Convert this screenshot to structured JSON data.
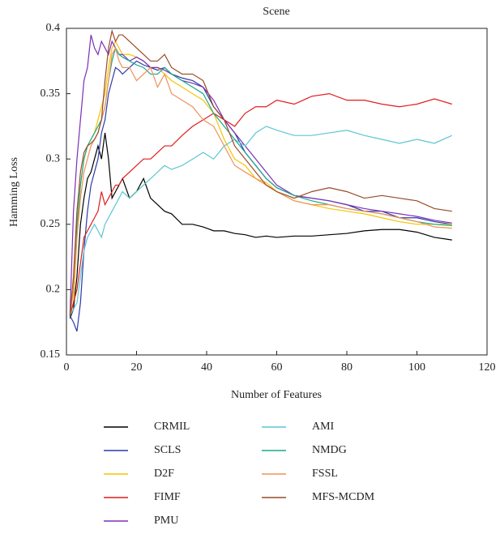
{
  "chart_data": {
    "type": "line",
    "title": "Scene",
    "xlabel": "Number of Features",
    "ylabel": "Hamming Loss",
    "x": [
      1,
      2,
      3,
      4,
      5,
      6,
      7,
      8,
      9,
      10,
      11,
      12,
      13,
      14,
      15,
      16,
      18,
      20,
      22,
      24,
      26,
      28,
      30,
      33,
      36,
      39,
      42,
      45,
      48,
      51,
      54,
      57,
      60,
      65,
      70,
      75,
      80,
      85,
      90,
      95,
      100,
      105,
      110
    ],
    "series": [
      {
        "name": "CRMIL",
        "color": "#000000",
        "values": [
          0.178,
          0.185,
          0.21,
          0.25,
          0.27,
          0.285,
          0.29,
          0.3,
          0.31,
          0.3,
          0.32,
          0.3,
          0.27,
          0.275,
          0.28,
          0.285,
          0.27,
          0.275,
          0.285,
          0.27,
          0.265,
          0.26,
          0.258,
          0.25,
          0.25,
          0.248,
          0.245,
          0.245,
          0.243,
          0.242,
          0.24,
          0.241,
          0.24,
          0.241,
          0.241,
          0.242,
          0.243,
          0.245,
          0.246,
          0.246,
          0.244,
          0.24,
          0.238
        ]
      },
      {
        "name": "SCLS",
        "color": "#2b3ba8",
        "values": [
          0.18,
          0.175,
          0.168,
          0.19,
          0.23,
          0.26,
          0.28,
          0.29,
          0.3,
          0.32,
          0.33,
          0.35,
          0.36,
          0.37,
          0.368,
          0.365,
          0.37,
          0.375,
          0.372,
          0.37,
          0.368,
          0.37,
          0.365,
          0.362,
          0.36,
          0.355,
          0.34,
          0.33,
          0.32,
          0.305,
          0.295,
          0.285,
          0.278,
          0.272,
          0.27,
          0.268,
          0.265,
          0.26,
          0.26,
          0.255,
          0.255,
          0.252,
          0.25
        ]
      },
      {
        "name": "D2F",
        "color": "#f5c400",
        "values": [
          0.18,
          0.19,
          0.24,
          0.28,
          0.3,
          0.31,
          0.315,
          0.32,
          0.33,
          0.34,
          0.35,
          0.37,
          0.385,
          0.39,
          0.385,
          0.38,
          0.38,
          0.378,
          0.375,
          0.37,
          0.37,
          0.365,
          0.36,
          0.355,
          0.35,
          0.345,
          0.335,
          0.315,
          0.3,
          0.295,
          0.285,
          0.282,
          0.275,
          0.268,
          0.265,
          0.262,
          0.26,
          0.258,
          0.255,
          0.252,
          0.25,
          0.25,
          0.25
        ]
      },
      {
        "name": "FIMF",
        "color": "#e01c1c",
        "values": [
          0.18,
          0.19,
          0.2,
          0.22,
          0.24,
          0.245,
          0.25,
          0.255,
          0.26,
          0.275,
          0.265,
          0.27,
          0.275,
          0.28,
          0.28,
          0.285,
          0.29,
          0.295,
          0.3,
          0.3,
          0.305,
          0.31,
          0.31,
          0.318,
          0.325,
          0.33,
          0.335,
          0.33,
          0.325,
          0.335,
          0.34,
          0.34,
          0.345,
          0.342,
          0.348,
          0.35,
          0.345,
          0.345,
          0.342,
          0.34,
          0.342,
          0.346,
          0.342
        ]
      },
      {
        "name": "PMU",
        "color": "#7b2fb5",
        "values": [
          0.18,
          0.26,
          0.3,
          0.33,
          0.36,
          0.37,
          0.395,
          0.385,
          0.38,
          0.39,
          0.385,
          0.38,
          0.39,
          0.385,
          0.38,
          0.38,
          0.375,
          0.378,
          0.375,
          0.37,
          0.37,
          0.368,
          0.365,
          0.36,
          0.358,
          0.355,
          0.345,
          0.33,
          0.32,
          0.31,
          0.3,
          0.29,
          0.28,
          0.272,
          0.27,
          0.268,
          0.265,
          0.262,
          0.26,
          0.258,
          0.256,
          0.253,
          0.251
        ]
      },
      {
        "name": "AMI",
        "color": "#5bc6d2",
        "values": [
          0.18,
          0.185,
          0.19,
          0.21,
          0.23,
          0.24,
          0.245,
          0.25,
          0.245,
          0.24,
          0.25,
          0.255,
          0.26,
          0.265,
          0.27,
          0.275,
          0.27,
          0.275,
          0.28,
          0.285,
          0.29,
          0.295,
          0.292,
          0.295,
          0.3,
          0.305,
          0.3,
          0.31,
          0.315,
          0.31,
          0.32,
          0.325,
          0.322,
          0.318,
          0.318,
          0.32,
          0.322,
          0.318,
          0.315,
          0.312,
          0.315,
          0.312,
          0.318
        ]
      },
      {
        "name": "NMDG",
        "color": "#19a98a",
        "values": [
          0.18,
          0.2,
          0.25,
          0.28,
          0.3,
          0.31,
          0.315,
          0.32,
          0.325,
          0.33,
          0.34,
          0.36,
          0.375,
          0.385,
          0.38,
          0.378,
          0.375,
          0.372,
          0.37,
          0.365,
          0.365,
          0.37,
          0.365,
          0.36,
          0.355,
          0.35,
          0.335,
          0.325,
          0.315,
          0.305,
          0.295,
          0.285,
          0.278,
          0.272,
          0.268,
          0.265,
          0.262,
          0.26,
          0.258,
          0.255,
          0.252,
          0.25,
          0.249
        ]
      },
      {
        "name": "FSSL",
        "color": "#f0905a",
        "values": [
          0.18,
          0.2,
          0.24,
          0.27,
          0.29,
          0.3,
          0.31,
          0.315,
          0.32,
          0.33,
          0.34,
          0.36,
          0.38,
          0.385,
          0.375,
          0.37,
          0.37,
          0.36,
          0.365,
          0.37,
          0.355,
          0.365,
          0.35,
          0.345,
          0.34,
          0.33,
          0.325,
          0.31,
          0.295,
          0.29,
          0.285,
          0.28,
          0.275,
          0.268,
          0.265,
          0.265,
          0.262,
          0.26,
          0.258,
          0.255,
          0.252,
          0.248,
          0.247
        ]
      },
      {
        "name": "MFS-MCDM",
        "color": "#9a4a28",
        "values": [
          0.18,
          0.21,
          0.26,
          0.29,
          0.305,
          0.31,
          0.312,
          0.315,
          0.32,
          0.33,
          0.36,
          0.385,
          0.398,
          0.39,
          0.395,
          0.395,
          0.39,
          0.385,
          0.38,
          0.375,
          0.375,
          0.38,
          0.37,
          0.365,
          0.365,
          0.36,
          0.34,
          0.33,
          0.31,
          0.3,
          0.29,
          0.28,
          0.275,
          0.27,
          0.275,
          0.278,
          0.275,
          0.27,
          0.272,
          0.27,
          0.268,
          0.262,
          0.26
        ]
      }
    ],
    "xlim": [
      0,
      120
    ],
    "xticks": [
      0,
      20,
      40,
      60,
      80,
      100,
      120
    ],
    "ylim": [
      0.15,
      0.4
    ],
    "yticks": [
      0.15,
      0.2,
      0.25,
      0.3,
      0.35,
      0.4
    ],
    "legend": "bottom"
  }
}
